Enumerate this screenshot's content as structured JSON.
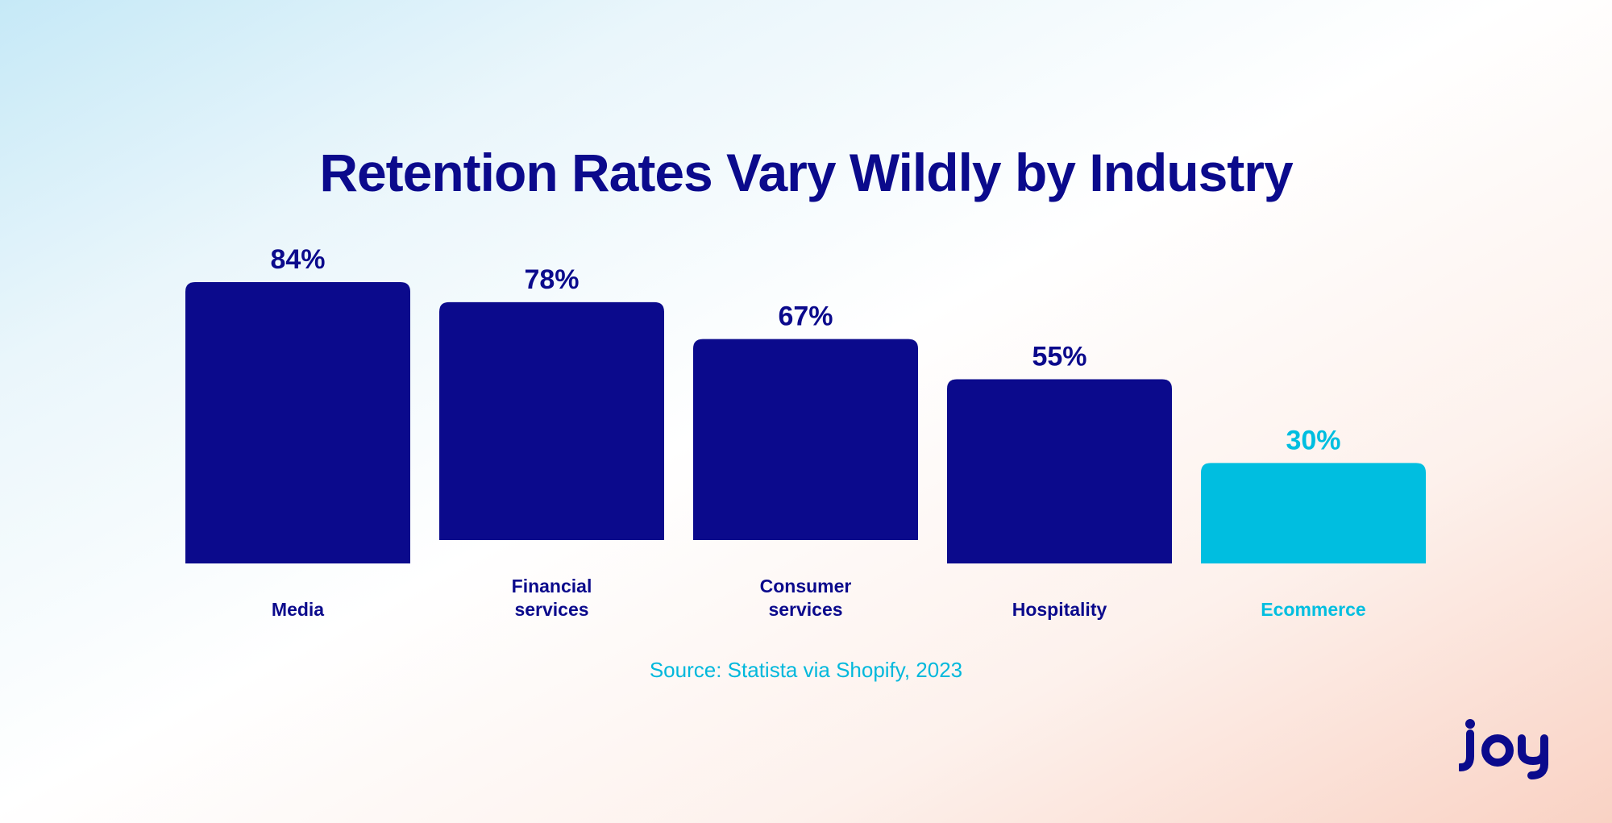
{
  "title": "Retention Rates Vary Wildly by Industry",
  "source": "Source: Statista via Shopify, 2023",
  "brand": "Joy",
  "colors": {
    "primary": "#0b0a8c",
    "highlight": "#00bee0",
    "source_text": "#00b8dc"
  },
  "chart_data": {
    "type": "bar",
    "categories": [
      "Media",
      "Financial services",
      "Consumer services",
      "Hospitality",
      "Ecommerce"
    ],
    "category_lines": [
      [
        "Media"
      ],
      [
        "Financial",
        "services"
      ],
      [
        "Consumer",
        "services"
      ],
      [
        "Hospitality"
      ],
      [
        "Ecommerce"
      ]
    ],
    "values": [
      84,
      78,
      67,
      55,
      30
    ],
    "value_labels": [
      "84%",
      "78%",
      "67%",
      "55%",
      "30%"
    ],
    "highlight_index": 4,
    "grid": false,
    "legend": "none"
  }
}
